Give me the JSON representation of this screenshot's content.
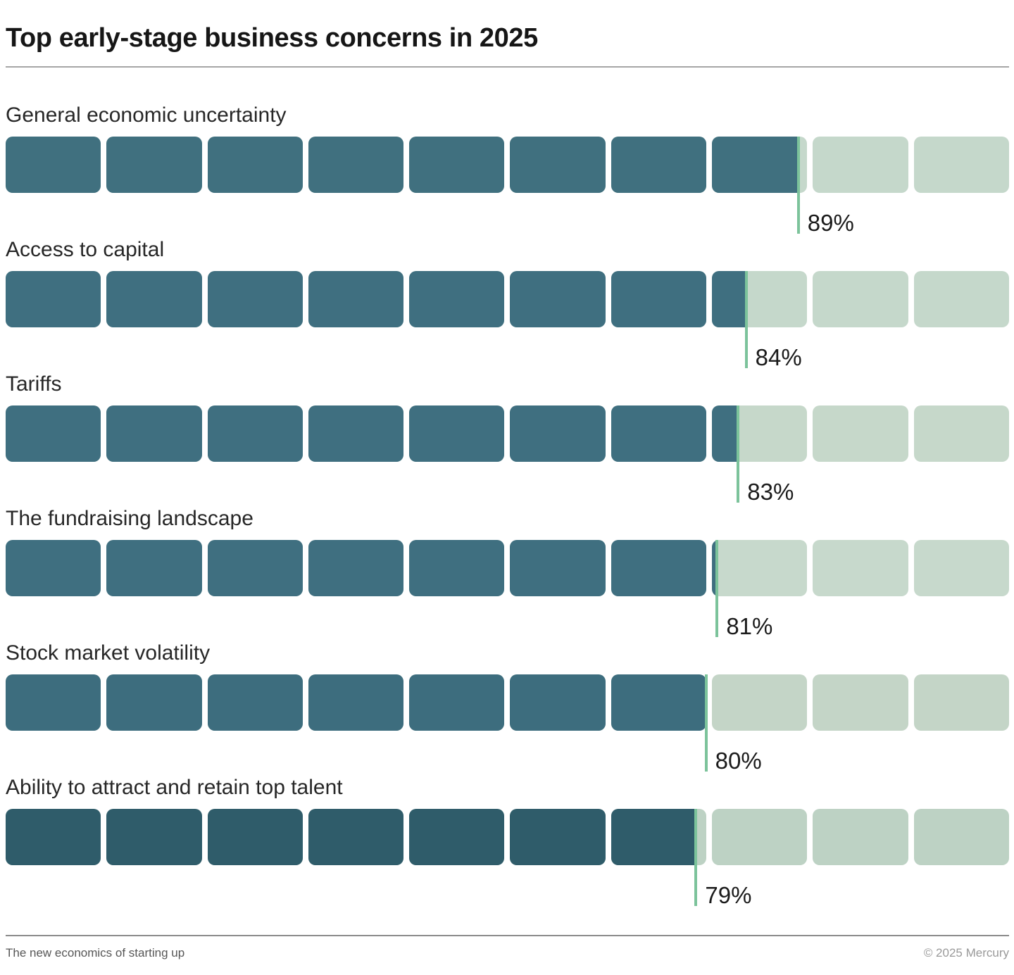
{
  "title": "Top early-stage business concerns in 2025",
  "chart_data": {
    "type": "bar",
    "subtype": "segmented-horizontal-progress",
    "title": "Top early-stage business concerns in 2025",
    "categories": [
      "General economic uncertainty",
      "Access to capital",
      "Tariffs",
      "The fundraising landscape",
      "Stock market volatility",
      "Ability to attract and retain top talent"
    ],
    "values": [
      89,
      84,
      83,
      81,
      80,
      79
    ],
    "value_labels": [
      "89%",
      "84%",
      "83%",
      "81%",
      "80%",
      "79%"
    ],
    "segments_per_bar": 10,
    "xlim": [
      0,
      100
    ],
    "legend": "none",
    "grid": false,
    "tick_color": "#7cc39b",
    "rows": [
      {
        "label": "General economic uncertainty",
        "value": 89,
        "value_label": "89%",
        "fill_pct": 79.0,
        "dark": "#40707f",
        "light": "#c5d8cb"
      },
      {
        "label": "Access to capital",
        "value": 84,
        "value_label": "84%",
        "fill_pct": 73.8,
        "dark": "#3f6f80",
        "light": "#c5d8cb"
      },
      {
        "label": "Tariffs",
        "value": 83,
        "value_label": "83%",
        "fill_pct": 73.0,
        "dark": "#3f6f80",
        "light": "#c6d8ca"
      },
      {
        "label": "The fundraising landscape",
        "value": 81,
        "value_label": "81%",
        "fill_pct": 70.9,
        "dark": "#3f6f80",
        "light": "#c7d9cc"
      },
      {
        "label": "Stock market volatility",
        "value": 80,
        "value_label": "80%",
        "fill_pct": 69.8,
        "dark": "#3d6d7e",
        "light": "#c4d5c7"
      },
      {
        "label": "Ability to attract and retain top talent",
        "value": 79,
        "value_label": "79%",
        "fill_pct": 68.8,
        "dark": "#2f5c6a",
        "light": "#bdd2c4"
      }
    ]
  },
  "footer": {
    "left": "The new economics of starting up",
    "right": "© 2025 Mercury"
  }
}
